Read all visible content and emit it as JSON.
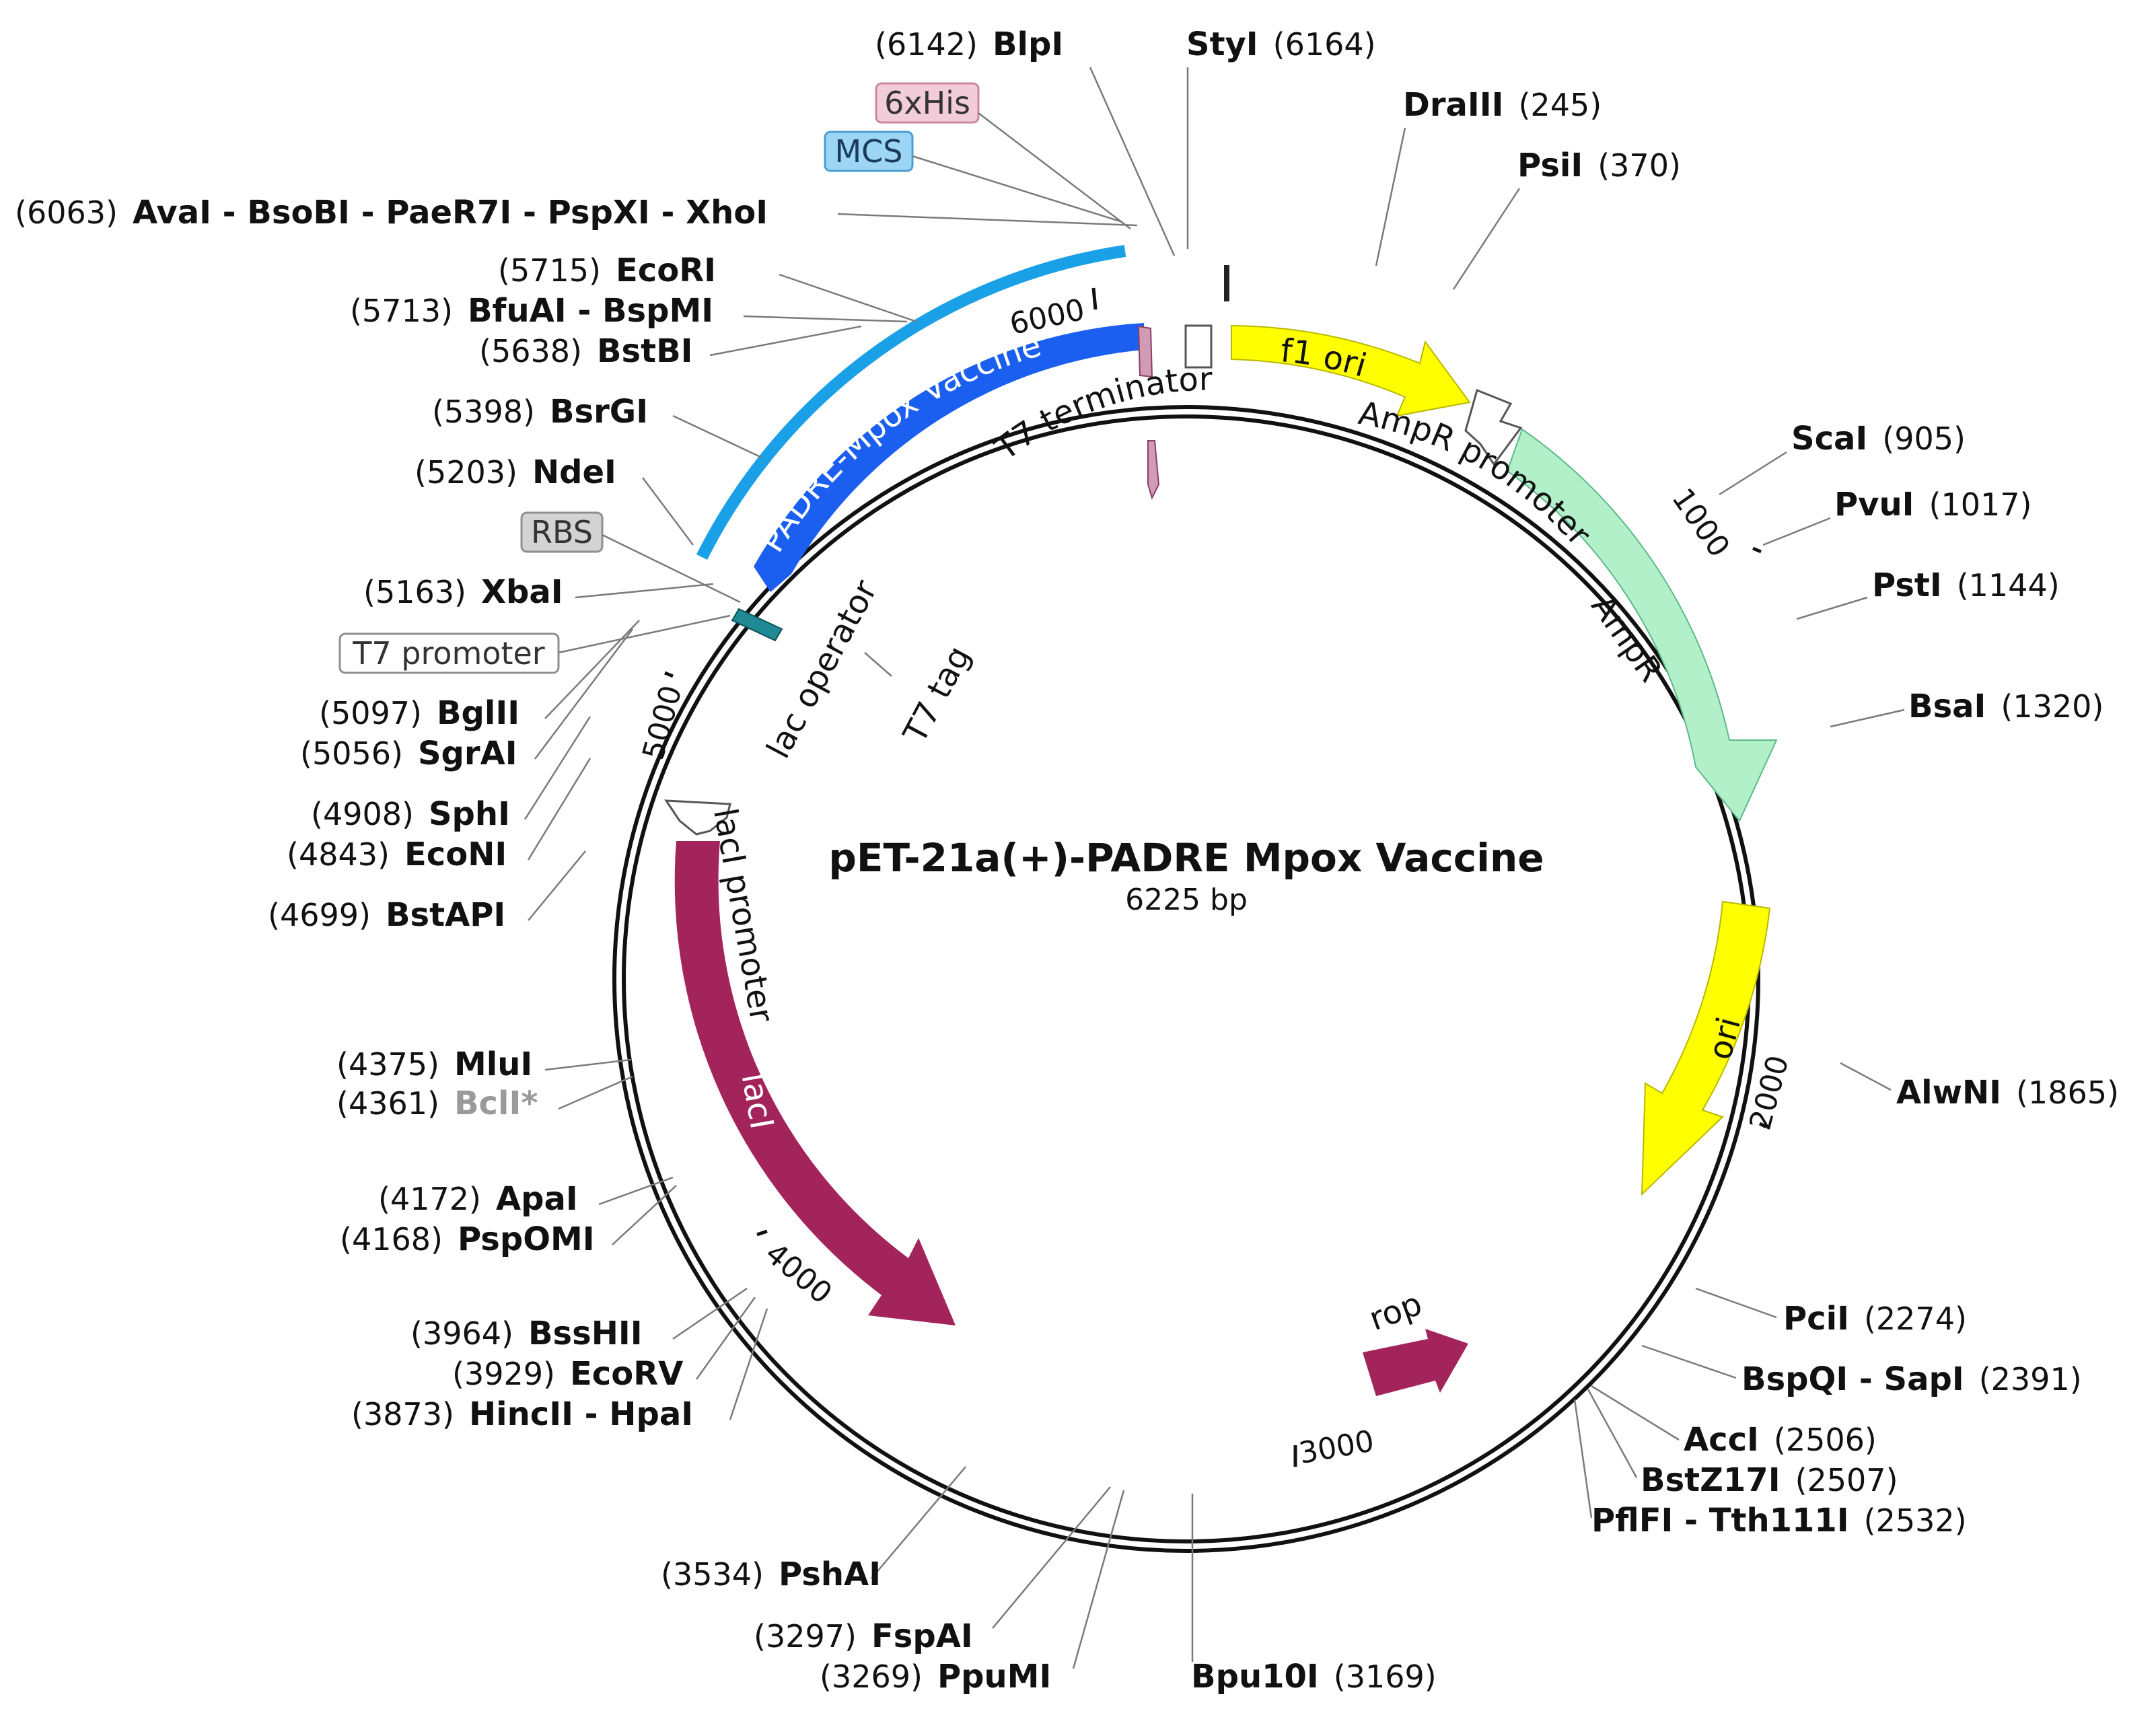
{
  "plasmid": {
    "name": "pET-21a(+)-PADRE Mpox Vaccine",
    "size_label": "6225 bp",
    "length": 6225
  },
  "ticks": [
    {
      "bp": 1000,
      "label": "1000"
    },
    {
      "bp": 2000,
      "label": "2000"
    },
    {
      "bp": 3000,
      "label": "3000"
    },
    {
      "bp": 4000,
      "label": "4000"
    },
    {
      "bp": 5000,
      "label": "5000"
    },
    {
      "bp": 6000,
      "label": "6000"
    }
  ],
  "features": [
    {
      "id": "f1-ori",
      "label": "f1 ori",
      "color": "#ffff00",
      "text_color": "#111111"
    },
    {
      "id": "ampr",
      "label": "AmpR",
      "color": "#b2f0c9"
    },
    {
      "id": "ampr-promoter",
      "label": "AmpR promoter",
      "color": "#ffffff"
    },
    {
      "id": "ori",
      "label": "ori",
      "color": "#ffff00",
      "text_color": "#111111"
    },
    {
      "id": "rop",
      "label": "rop",
      "color": "#a3245a"
    },
    {
      "id": "laci",
      "label": "lacI",
      "color": "#a3245a",
      "text_color": "#ffffff"
    },
    {
      "id": "laci-promoter",
      "label": "lacI promoter",
      "color": "#ffffff"
    },
    {
      "id": "padre",
      "label": "PADRE-Mpox Vaccine",
      "color": "#1a5ff0",
      "text_color": "#ffffff"
    },
    {
      "id": "mcs-arc",
      "label": "",
      "color": "#1aa0e6"
    },
    {
      "id": "t7-terminator",
      "label": "T7 terminator",
      "color": "#ffffff"
    },
    {
      "id": "his-tag",
      "label": "6xHis",
      "color": "#d19bb5"
    },
    {
      "id": "lac-operator",
      "label": "lac operator",
      "color": "#1f8a94"
    },
    {
      "id": "t7-tag",
      "label": "T7 tag",
      "color": "#ffffff"
    }
  ],
  "boxed_labels": [
    {
      "id": "his-box",
      "label": "6xHis",
      "fill": "#f2cdd9",
      "stroke": "#c8889d"
    },
    {
      "id": "mcs-box",
      "label": "MCS",
      "fill": "#9dd5f5",
      "stroke": "#4a9fd1"
    },
    {
      "id": "rbs-box",
      "label": "RBS",
      "fill": "#d3d3d3",
      "stroke": "#8f8f8f"
    },
    {
      "id": "t7p-box",
      "label": "T7 promoter",
      "fill": "#ffffff",
      "stroke": "#8f8f8f"
    }
  ],
  "sites": [
    {
      "pos": "(6142)",
      "name": "BlpI"
    },
    {
      "pos": "(6164)",
      "name": "StyI"
    },
    {
      "pos": "(245)",
      "name": "DraIII"
    },
    {
      "pos": "(370)",
      "name": "PsiI"
    },
    {
      "pos": "(6063)",
      "name": "AvaI - BsoBI - PaeR7I - PspXI - XhoI"
    },
    {
      "pos": "(5715)",
      "name": "EcoRI"
    },
    {
      "pos": "(5713)",
      "name": "BfuAI - BspMI"
    },
    {
      "pos": "(5638)",
      "name": "BstBI"
    },
    {
      "pos": "(5398)",
      "name": "BsrGI"
    },
    {
      "pos": "(5203)",
      "name": "NdeI"
    },
    {
      "pos": "(5163)",
      "name": "XbaI"
    },
    {
      "pos": "(5097)",
      "name": "BglII"
    },
    {
      "pos": "(5056)",
      "name": "SgrAI"
    },
    {
      "pos": "(4908)",
      "name": "SphI"
    },
    {
      "pos": "(4843)",
      "name": "EcoNI"
    },
    {
      "pos": "(4699)",
      "name": "BstAPI"
    },
    {
      "pos": "(4375)",
      "name": "MluI"
    },
    {
      "pos": "(4361)",
      "name": "BclI*"
    },
    {
      "pos": "(4172)",
      "name": "ApaI"
    },
    {
      "pos": "(4168)",
      "name": "PspOMI"
    },
    {
      "pos": "(3964)",
      "name": "BssHII"
    },
    {
      "pos": "(3929)",
      "name": "EcoRV"
    },
    {
      "pos": "(3873)",
      "name": "HincII - HpaI"
    },
    {
      "pos": "(3534)",
      "name": "PshAI"
    },
    {
      "pos": "(3297)",
      "name": "FspAI"
    },
    {
      "pos": "(3269)",
      "name": "PpuMI"
    },
    {
      "pos": "(3169)",
      "name": "Bpu10I"
    },
    {
      "pos": "(905)",
      "name": "ScaI"
    },
    {
      "pos": "(1017)",
      "name": "PvuI"
    },
    {
      "pos": "(1144)",
      "name": "PstI"
    },
    {
      "pos": "(1320)",
      "name": "BsaI"
    },
    {
      "pos": "(1865)",
      "name": "AlwNI"
    },
    {
      "pos": "(2274)",
      "name": "PciI"
    },
    {
      "pos": "(2391)",
      "name": "BspQI - SapI"
    },
    {
      "pos": "(2506)",
      "name": "AccI"
    },
    {
      "pos": "(2507)",
      "name": "BstZ17I"
    },
    {
      "pos": "(2532)",
      "name": "PflFI - Tth111I"
    }
  ]
}
